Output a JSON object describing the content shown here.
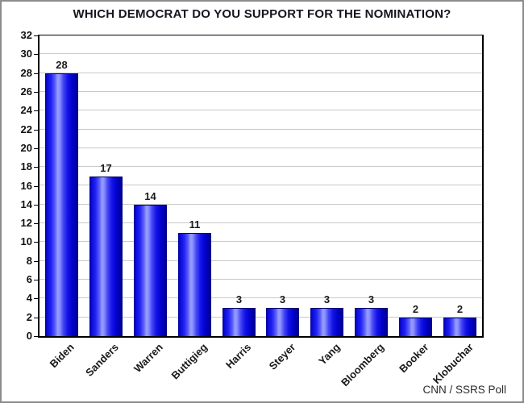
{
  "title": "WHICH DEMOCRAT DO YOU SUPPORT FOR THE NOMINATION?",
  "source_note": "CNN / SSRS Poll",
  "chart_data": {
    "type": "bar",
    "title": "WHICH DEMOCRAT DO YOU SUPPORT FOR THE NOMINATION?",
    "categories": [
      "Biden",
      "Sanders",
      "Warren",
      "Buttigieg",
      "Harris",
      "Steyer",
      "Yang",
      "Bloomberg",
      "Booker",
      "Klobuchar"
    ],
    "values": [
      28,
      17,
      14,
      11,
      3,
      3,
      3,
      3,
      2,
      2
    ],
    "xlabel": "",
    "ylabel": "",
    "ylim": [
      0,
      32
    ],
    "ytick_step": 2,
    "grid": true,
    "legend": false,
    "bar_color_main": "#0000ee",
    "bar_highlight_color": "#989eff",
    "gridline_color": "#c9c9c9",
    "annotation": "CNN / SSRS Poll"
  }
}
